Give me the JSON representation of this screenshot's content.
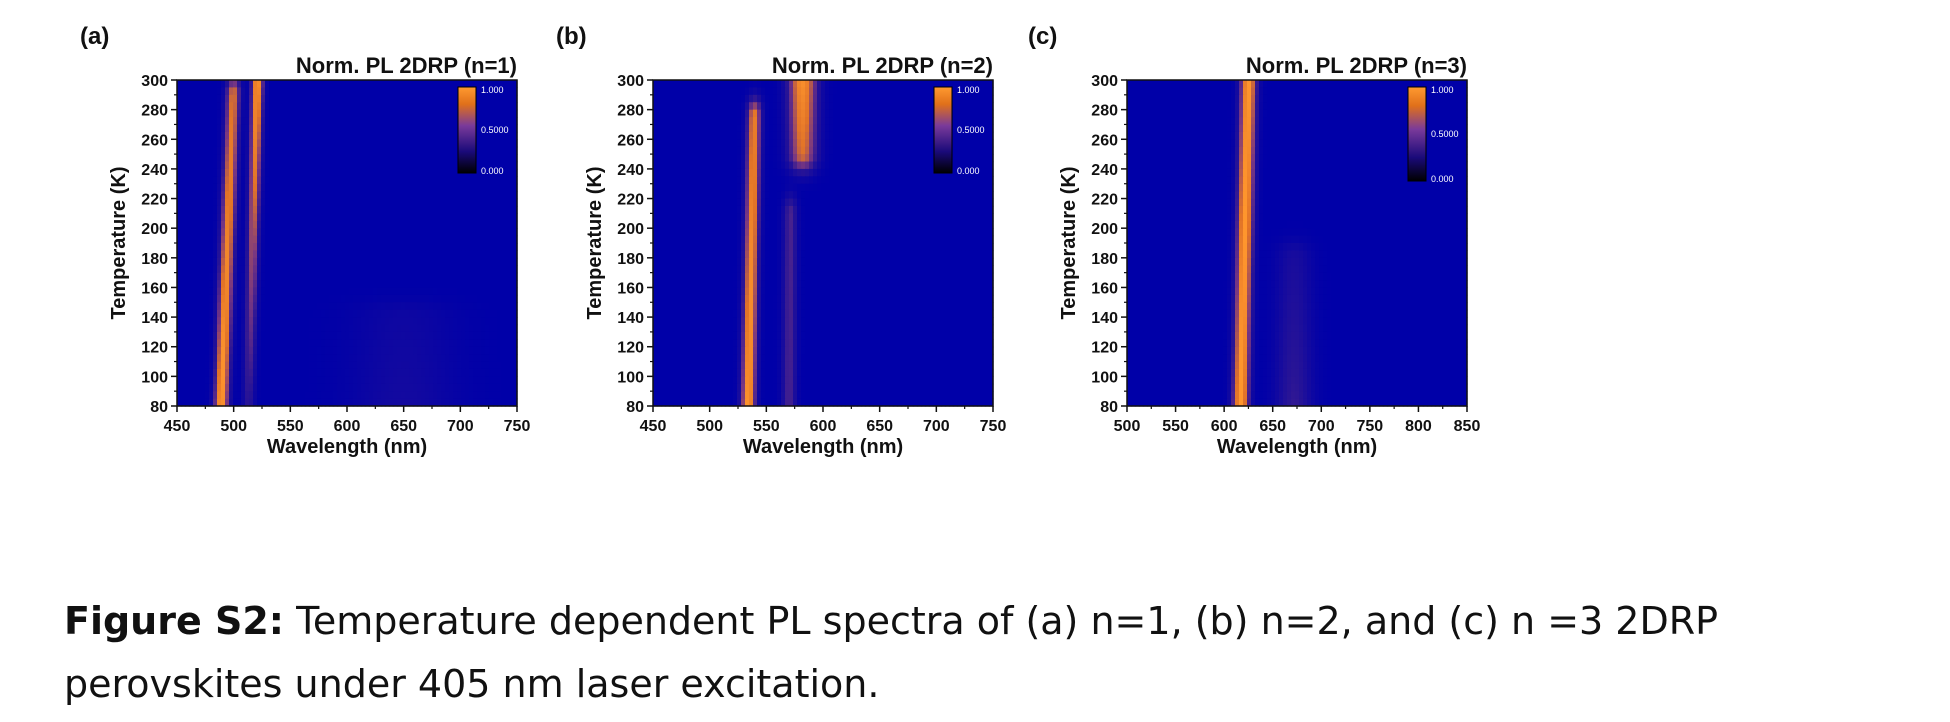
{
  "caption": {
    "label": "Figure S2:",
    "text": " Temperature dependent PL spectra of (a) n=1, (b) n=2, and (c) n =3 2DRP perovskites under 405 nm laser excitation."
  },
  "colors": {
    "background_low": "#0000a8",
    "mid": "#5a2a8a",
    "high": "#ff8a1a",
    "peak": "#ffb040"
  },
  "chart_data": [
    {
      "type": "heatmap",
      "panel_label": "(a)",
      "title": "Norm. PL 2DRP (n=1)",
      "xlabel": "Wavelength (nm)",
      "ylabel": "Temperature (K)",
      "xlim": [
        450,
        750
      ],
      "ylim": [
        80,
        300
      ],
      "xticks": [
        450,
        500,
        550,
        600,
        650,
        700,
        750
      ],
      "yticks": [
        80,
        100,
        120,
        140,
        160,
        180,
        200,
        220,
        240,
        260,
        280,
        300
      ],
      "colorbar": {
        "max_label": "1.000",
        "mid_label": "0.5000",
        "min_label": "0.000"
      },
      "peaks": [
        {
          "center_low_T": 489,
          "center_high_T": 500,
          "width": 6,
          "amp_low_T": 1.0,
          "amp_high_T": 0.75,
          "T_end": 290
        },
        {
          "center_low_T": 513,
          "center_high_T": 521,
          "width": 5,
          "amp_low_T": 0.25,
          "amp_high_T": 1.0,
          "T_start": 80
        },
        {
          "center_low_T": 650,
          "center_high_T": 650,
          "width": 45,
          "amp_low_T": 0.12,
          "amp_high_T": 0.0,
          "T_end": 140
        }
      ]
    },
    {
      "type": "heatmap",
      "panel_label": "(b)",
      "title": "Norm. PL 2DRP (n=2)",
      "xlabel": "Wavelength (nm)",
      "ylabel": "Temperature (K)",
      "xlim": [
        450,
        750
      ],
      "ylim": [
        80,
        300
      ],
      "xticks": [
        450,
        500,
        550,
        600,
        650,
        700,
        750
      ],
      "yticks": [
        80,
        100,
        120,
        140,
        160,
        180,
        200,
        220,
        240,
        260,
        280,
        300
      ],
      "colorbar": {
        "max_label": "1.000",
        "mid_label": "0.5000",
        "min_label": "0.000"
      },
      "peaks": [
        {
          "center_low_T": 534,
          "center_high_T": 540,
          "width": 6,
          "amp_low_T": 1.0,
          "amp_high_T": 0.8,
          "T_end": 275
        },
        {
          "center_low_T": 570,
          "center_high_T": 572,
          "width": 6,
          "amp_low_T": 0.35,
          "amp_high_T": 0.35,
          "T_start": 80,
          "T_end": 210
        },
        {
          "center_low_T": 582,
          "center_high_T": 582,
          "width": 12,
          "amp_low_T": 0.0,
          "amp_high_T": 0.95,
          "T_start": 250
        }
      ]
    },
    {
      "type": "heatmap",
      "panel_label": "(c)",
      "title": "Norm. PL 2DRP (n=3)",
      "xlabel": "Wavelength (nm)",
      "ylabel": "Temperature (K)",
      "xlim": [
        500,
        850
      ],
      "ylim": [
        80,
        300
      ],
      "xticks": [
        500,
        550,
        600,
        650,
        700,
        750,
        800,
        850
      ],
      "yticks": [
        80,
        100,
        120,
        140,
        160,
        180,
        200,
        220,
        240,
        260,
        280,
        300
      ],
      "colorbar": {
        "max_label": "1.000",
        "mid_label": "0.5000",
        "min_label": "0.000"
      },
      "peaks": [
        {
          "center_low_T": 617,
          "center_high_T": 625,
          "width": 8,
          "amp_low_T": 1.0,
          "amp_high_T": 1.0
        },
        {
          "center_low_T": 672,
          "center_high_T": 672,
          "width": 18,
          "amp_low_T": 0.28,
          "amp_high_T": 0.0,
          "T_end": 180
        }
      ]
    }
  ]
}
